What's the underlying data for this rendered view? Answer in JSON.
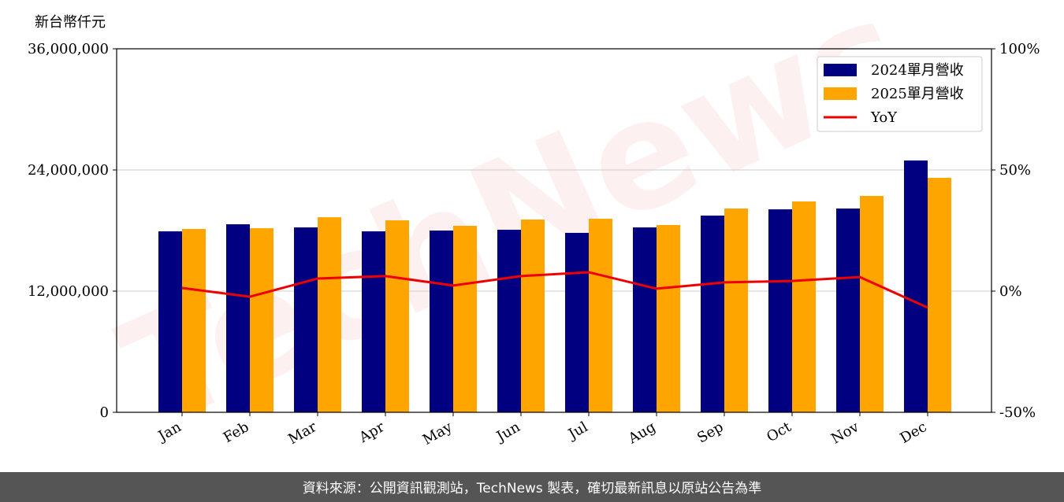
{
  "chart_data": {
    "type": "bar",
    "unit_label": "新台幣仟元",
    "watermark": "TechNews",
    "categories": [
      "Jan",
      "Feb",
      "Mar",
      "Apr",
      "May",
      "Jun",
      "Jul",
      "Aug",
      "Sep",
      "Oct",
      "Nov",
      "Dec"
    ],
    "series": [
      {
        "name": "2024單月營收",
        "color": "#000080",
        "type": "bar",
        "values": [
          17920000,
          18620000,
          18310000,
          17920000,
          18000000,
          18080000,
          17770000,
          18310000,
          19480000,
          20100000,
          20180000,
          24940000
        ]
      },
      {
        "name": "2025單月營收",
        "color": "#ffa500",
        "type": "bar",
        "values": [
          18160000,
          18230000,
          19320000,
          19010000,
          18470000,
          19090000,
          19170000,
          18550000,
          20180000,
          20880000,
          21430000,
          23220000
        ]
      },
      {
        "name": "YoY",
        "color": "#ee0000",
        "type": "line",
        "axis": "y2",
        "values": [
          1.3,
          -2.3,
          5.2,
          6.2,
          2.3,
          6.2,
          7.8,
          1.0,
          3.6,
          4.2,
          5.8,
          -6.8
        ]
      }
    ],
    "ylim": [
      0,
      36000000
    ],
    "yticks": [
      {
        "value": 0,
        "label": "0"
      },
      {
        "value": 12000000,
        "label": "12,000,000"
      },
      {
        "value": 24000000,
        "label": "24,000,000"
      },
      {
        "value": 36000000,
        "label": "36,000,000"
      }
    ],
    "y2lim": [
      -50,
      100
    ],
    "y2ticks": [
      {
        "value": -50,
        "label": "-50%"
      },
      {
        "value": 0,
        "label": "0%"
      },
      {
        "value": 50,
        "label": "50%"
      },
      {
        "value": 100,
        "label": "100%"
      }
    ],
    "grid": true,
    "legend": "upper right",
    "footer": "資料來源：公開資訊觀測站，TechNews 製表，確切最新訊息以原站公告為準"
  }
}
